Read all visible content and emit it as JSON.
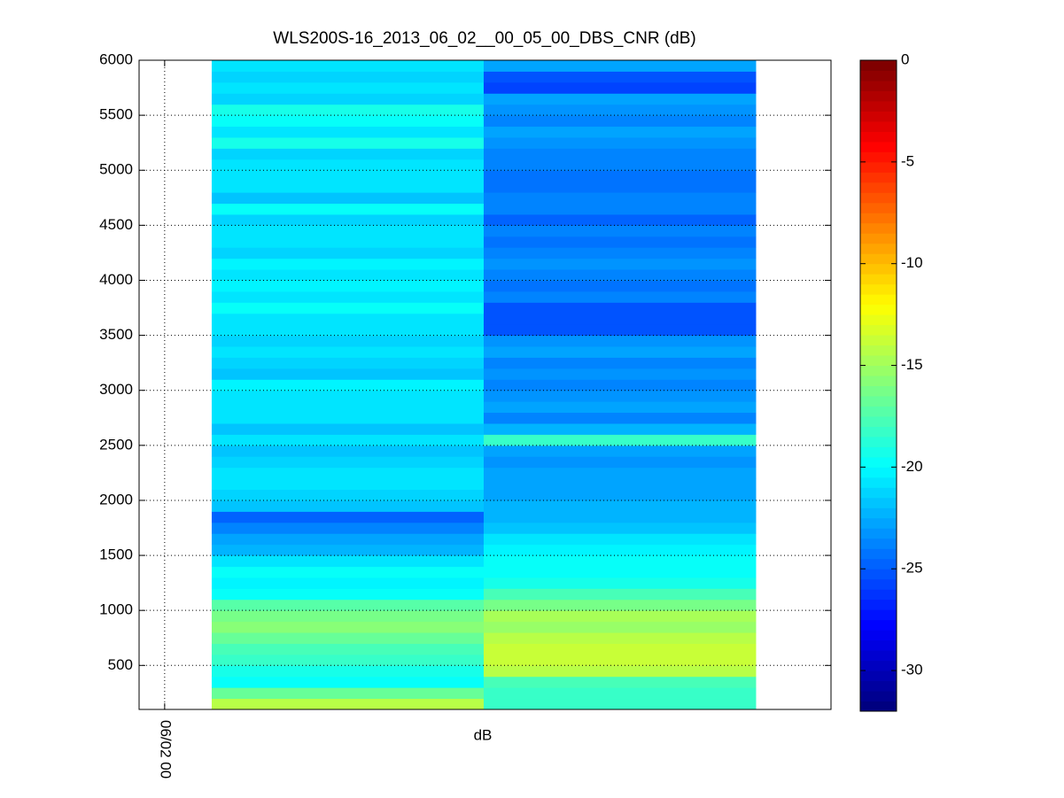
{
  "chart_data": {
    "type": "heatmap",
    "title": "WLS200S-16_2013_06_02__00_05_00_DBS_CNR (dB)",
    "xlabel": "dB",
    "x_edges": [
      0,
      1,
      2
    ],
    "xlim": [
      -0.267,
      2.277
    ],
    "xticks": [
      {
        "value": -0.173,
        "label": "06/02 00"
      }
    ],
    "y_edges": [
      100,
      200,
      300,
      400,
      500,
      600,
      700,
      800,
      900,
      1000,
      1100,
      1200,
      1300,
      1400,
      1500,
      1600,
      1700,
      1800,
      1900,
      2000,
      2100,
      2200,
      2300,
      2400,
      2500,
      2600,
      2700,
      2800,
      2900,
      3000,
      3100,
      3200,
      3300,
      3400,
      3500,
      3600,
      3700,
      3800,
      3900,
      4000,
      4100,
      4200,
      4300,
      4400,
      4500,
      4600,
      4700,
      4800,
      4900,
      5000,
      5100,
      5200,
      5300,
      5400,
      5500,
      5600,
      5700,
      5800,
      5900,
      6000
    ],
    "ylim": [
      100,
      6000
    ],
    "yticks": [
      500,
      1000,
      1500,
      2000,
      2500,
      3000,
      3500,
      4000,
      4500,
      5000,
      5500,
      6000
    ],
    "grid": true,
    "colormap": "jet",
    "clim": [
      -32,
      0
    ],
    "cticks": [
      -30,
      -25,
      -20,
      -15,
      -10,
      -5,
      0
    ],
    "z": [
      [
        -14.5,
        -17,
        -20,
        -19.5,
        -18.5,
        -18,
        -17,
        -16,
        -16.5,
        -17.5,
        -20,
        -20.5,
        -20,
        -21,
        -22.5,
        -23,
        -24,
        -25,
        -22,
        -21.5,
        -21,
        -21,
        -21.5,
        -22,
        -21,
        -22,
        -21,
        -21,
        -21,
        -20.5,
        -22,
        -21.5,
        -21,
        -21.5,
        -21,
        -21,
        -20,
        -21,
        -20.5,
        -21,
        -20.5,
        -21.5,
        -21,
        -21,
        -21.5,
        -20,
        -22,
        -21,
        -21,
        -21,
        -21.5,
        -19.5,
        -21,
        -20,
        -19.5,
        -21.5,
        -21,
        -21.5,
        -21
      ],
      [
        -18.5,
        -18.5,
        -18,
        -14.5,
        -14,
        -14,
        -14.5,
        -15.5,
        -15,
        -16.5,
        -18,
        -19.5,
        -20,
        -20,
        -20.5,
        -21,
        -22,
        -22.5,
        -22.5,
        -23,
        -23,
        -23,
        -23.5,
        -23,
        -18.5,
        -22.5,
        -24,
        -23,
        -23.5,
        -24,
        -23.5,
        -24,
        -23,
        -23.5,
        -25.5,
        -25.5,
        -25.5,
        -24,
        -24.5,
        -24,
        -23.5,
        -24,
        -24.5,
        -24,
        -25,
        -24,
        -24,
        -24.5,
        -24.5,
        -24,
        -24,
        -23.5,
        -23,
        -24,
        -23.5,
        -23,
        -26,
        -25.5,
        -23
      ]
    ]
  }
}
